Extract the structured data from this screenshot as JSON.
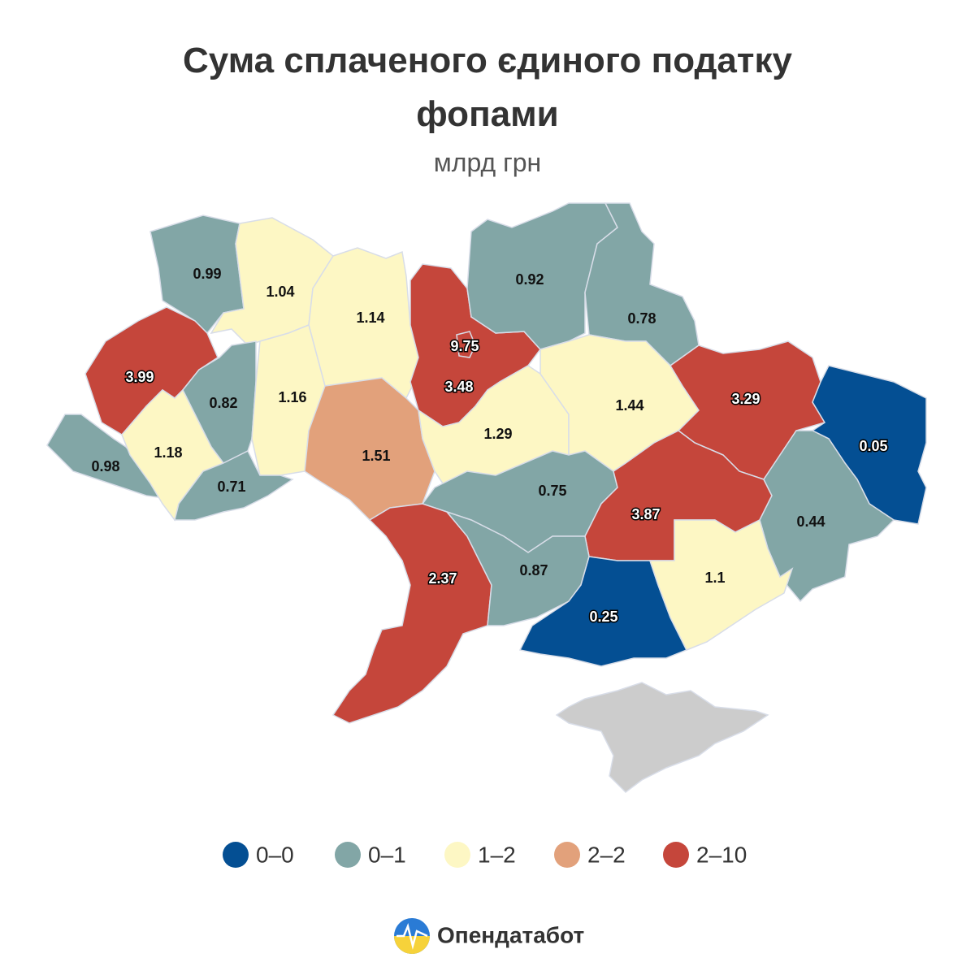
{
  "chart_data": {
    "type": "choropleth",
    "title": "Сума сплаченого єдиного податку фопами",
    "subtitle": "млрд грн",
    "values": [
      0.99,
      1.04,
      1.14,
      9.75,
      3.48,
      0.92,
      0.78,
      3.99,
      0.82,
      1.16,
      1.51,
      1.29,
      1.44,
      3.29,
      0.05,
      0.98,
      1.18,
      0.71,
      0.75,
      3.87,
      0.44,
      2.37,
      0.87,
      0.25,
      1.1
    ],
    "colors": [
      "#82a6a6",
      "#fdf7c4",
      "#fdf7c4",
      "#c5463b",
      "#c5463b",
      "#82a6a6",
      "#82a6a6",
      "#c5463b",
      "#82a6a6",
      "#fdf7c4",
      "#e2a17b",
      "#fdf7c4",
      "#fdf7c4",
      "#c5463b",
      "#044f93",
      "#82a6a6",
      "#fdf7c4",
      "#82a6a6",
      "#82a6a6",
      "#c5463b",
      "#82a6a6",
      "#c5463b",
      "#82a6a6",
      "#044f93",
      "#fdf7c4"
    ],
    "legend": [
      {
        "label": "0–0",
        "color": "#044f93"
      },
      {
        "label": "0–1",
        "color": "#82a6a6"
      },
      {
        "label": "1–2",
        "color": "#fdf7c4"
      },
      {
        "label": "2–2",
        "color": "#e2a17b"
      },
      {
        "label": "2–10",
        "color": "#c5463b"
      }
    ]
  },
  "footer": {
    "brand": "Опендатабот"
  }
}
